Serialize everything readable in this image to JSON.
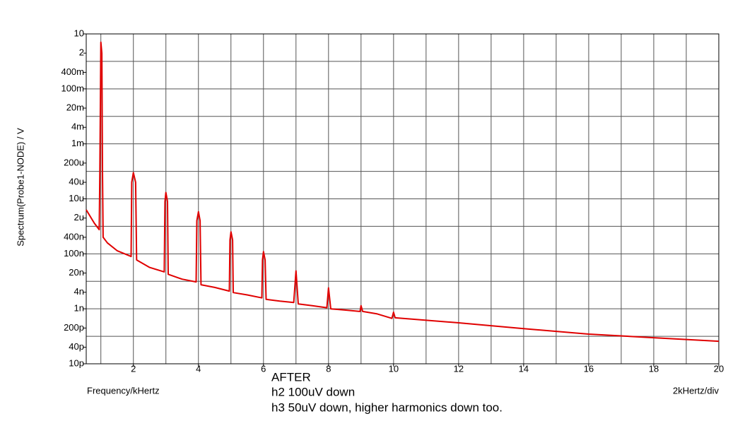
{
  "chart_data": {
    "type": "line",
    "ylabel": "Spectrum(Probe1-NODE) / V",
    "xlabel": "Frequency/kHertz",
    "xscale_note": "2kHertz/div",
    "annotations": [
      "AFTER",
      "h2 100uV down",
      "h3 50uV down, higher harmonics down too."
    ],
    "log_y": true,
    "grid": true,
    "xlim": [
      0.55,
      20
    ],
    "ylim": [
      1e-11,
      10
    ],
    "xticks": [
      2,
      4,
      6,
      8,
      10,
      12,
      14,
      16,
      18,
      20
    ],
    "xgrid": [
      1,
      2,
      3,
      4,
      5,
      6,
      7,
      8,
      9,
      10,
      11,
      12,
      13,
      14,
      15,
      16,
      17,
      18,
      19,
      20
    ],
    "ygrid": [
      1e-11,
      1e-10,
      1e-09,
      1e-08,
      1e-07,
      1e-06,
      1e-05,
      0.0001,
      0.001,
      0.01,
      0.1,
      1,
      10
    ],
    "yticks": [
      {
        "value": 10,
        "label": "10"
      },
      {
        "value": 2,
        "label": "2"
      },
      {
        "value": 0.4,
        "label": "400m"
      },
      {
        "value": 0.1,
        "label": "100m"
      },
      {
        "value": 0.02,
        "label": "20m"
      },
      {
        "value": 0.004,
        "label": "4m"
      },
      {
        "value": 0.001,
        "label": "1m"
      },
      {
        "value": 0.0002,
        "label": "200u"
      },
      {
        "value": 4e-05,
        "label": "40u"
      },
      {
        "value": 1e-05,
        "label": "10u"
      },
      {
        "value": 2e-06,
        "label": "2u"
      },
      {
        "value": 4e-07,
        "label": "400n"
      },
      {
        "value": 1e-07,
        "label": "100n"
      },
      {
        "value": 2e-08,
        "label": "20n"
      },
      {
        "value": 4e-09,
        "label": "4n"
      },
      {
        "value": 1e-09,
        "label": "1n"
      },
      {
        "value": 2e-10,
        "label": "200p"
      },
      {
        "value": 4e-11,
        "label": "40p"
      },
      {
        "value": 1e-11,
        "label": "10p"
      }
    ],
    "x": [
      0.55,
      0.8,
      0.95,
      0.97,
      1.0,
      1.03,
      1.05,
      1.07,
      1.2,
      1.5,
      1.93,
      1.95,
      2.0,
      2.07,
      2.1,
      2.5,
      2.95,
      2.97,
      3.0,
      3.05,
      3.07,
      3.5,
      3.93,
      3.95,
      4.0,
      4.05,
      4.08,
      4.5,
      4.95,
      4.97,
      5.0,
      5.05,
      5.07,
      5.5,
      5.95,
      5.97,
      6.0,
      6.05,
      6.08,
      6.5,
      6.93,
      7.0,
      7.07,
      7.5,
      7.95,
      8.0,
      8.07,
      8.5,
      8.97,
      9.0,
      9.05,
      9.5,
      9.95,
      10.0,
      10.05,
      12,
      14,
      16,
      18,
      20
    ],
    "series": [
      {
        "name": "Spectrum",
        "color": "#e00000",
        "values": [
          4e-06,
          1.3e-06,
          7.6e-07,
          0.0001,
          5,
          2,
          0.0001,
          4e-07,
          2.5e-07,
          1.3e-07,
          8e-08,
          4e-05,
          9e-05,
          4e-05,
          6e-08,
          3.2e-08,
          2.2e-08,
          8e-06,
          1.7e-05,
          8e-06,
          1.8e-08,
          1.2e-08,
          9.5e-09,
          1.6e-06,
          3.4e-06,
          1.6e-06,
          7.5e-09,
          6e-09,
          4.4e-09,
          3.2e-07,
          6.3e-07,
          3.2e-07,
          3.9e-09,
          3.2e-09,
          2.5e-09,
          6e-08,
          1.2e-07,
          6e-08,
          2.2e-09,
          1.9e-09,
          1.7e-09,
          2.4e-08,
          1.5e-09,
          1.3e-09,
          1.1e-09,
          5.8e-09,
          1e-09,
          9e-10,
          8e-10,
          1.3e-09,
          8e-10,
          6.5e-10,
          4.5e-10,
          7.5e-10,
          4.7e-10,
          3.1e-10,
          1.9e-10,
          1.2e-10,
          8.9e-11,
          6.6e-11
        ]
      }
    ]
  }
}
